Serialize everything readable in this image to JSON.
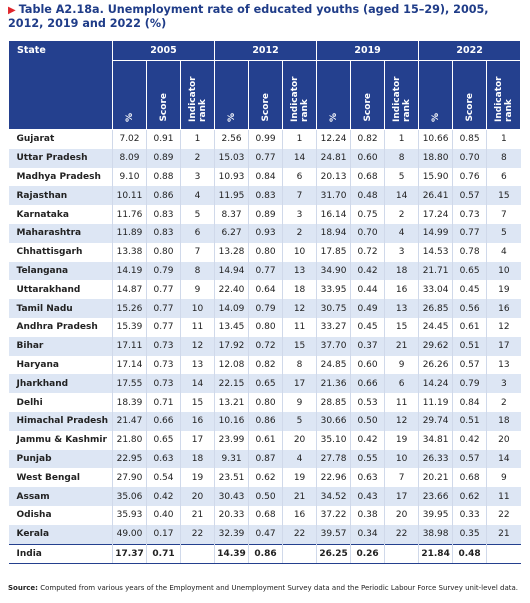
{
  "title": "Table A2.18a. Unemployment rate of educated youths (aged 15–29), 2005, 2012, 2019 and 2022 (%)",
  "source_label": "Source:",
  "source_text": "Computed from various years of the Employment and Unemployment Survey data and the Periodic Labour Force Survey unit-level data.",
  "table": {
    "state_header": "State",
    "years": [
      "2005",
      "2012",
      "2019",
      "2022"
    ],
    "subheaders": [
      "%",
      "Score",
      "Indicator rank"
    ],
    "rows": [
      [
        "Gujarat",
        "7.02",
        "0.91",
        "1",
        "2.56",
        "0.99",
        "1",
        "12.24",
        "0.82",
        "1",
        "10.66",
        "0.85",
        "1"
      ],
      [
        "Uttar Pradesh",
        "8.09",
        "0.89",
        "2",
        "15.03",
        "0.77",
        "14",
        "24.81",
        "0.60",
        "8",
        "18.80",
        "0.70",
        "8"
      ],
      [
        "Madhya Pradesh",
        "9.10",
        "0.88",
        "3",
        "10.93",
        "0.84",
        "6",
        "20.13",
        "0.68",
        "5",
        "15.90",
        "0.76",
        "6"
      ],
      [
        "Rajasthan",
        "10.11",
        "0.86",
        "4",
        "11.95",
        "0.83",
        "7",
        "31.70",
        "0.48",
        "14",
        "26.41",
        "0.57",
        "15"
      ],
      [
        "Karnataka",
        "11.76",
        "0.83",
        "5",
        "8.37",
        "0.89",
        "3",
        "16.14",
        "0.75",
        "2",
        "17.24",
        "0.73",
        "7"
      ],
      [
        "Maharashtra",
        "11.89",
        "0.83",
        "6",
        "6.27",
        "0.93",
        "2",
        "18.94",
        "0.70",
        "4",
        "14.99",
        "0.77",
        "5"
      ],
      [
        "Chhattisgarh",
        "13.38",
        "0.80",
        "7",
        "13.28",
        "0.80",
        "10",
        "17.85",
        "0.72",
        "3",
        "14.53",
        "0.78",
        "4"
      ],
      [
        "Telangana",
        "14.19",
        "0.79",
        "8",
        "14.94",
        "0.77",
        "13",
        "34.90",
        "0.42",
        "18",
        "21.71",
        "0.65",
        "10"
      ],
      [
        "Uttarakhand",
        "14.87",
        "0.77",
        "9",
        "22.40",
        "0.64",
        "18",
        "33.95",
        "0.44",
        "16",
        "33.04",
        "0.45",
        "19"
      ],
      [
        "Tamil Nadu",
        "15.26",
        "0.77",
        "10",
        "14.09",
        "0.79",
        "12",
        "30.75",
        "0.49",
        "13",
        "26.85",
        "0.56",
        "16"
      ],
      [
        "Andhra Pradesh",
        "15.39",
        "0.77",
        "11",
        "13.45",
        "0.80",
        "11",
        "33.27",
        "0.45",
        "15",
        "24.45",
        "0.61",
        "12"
      ],
      [
        "Bihar",
        "17.11",
        "0.73",
        "12",
        "17.92",
        "0.72",
        "15",
        "37.70",
        "0.37",
        "21",
        "29.62",
        "0.51",
        "17"
      ],
      [
        "Haryana",
        "17.14",
        "0.73",
        "13",
        "12.08",
        "0.82",
        "8",
        "24.85",
        "0.60",
        "9",
        "26.26",
        "0.57",
        "13"
      ],
      [
        "Jharkhand",
        "17.55",
        "0.73",
        "14",
        "22.15",
        "0.65",
        "17",
        "21.36",
        "0.66",
        "6",
        "14.24",
        "0.79",
        "3"
      ],
      [
        "Delhi",
        "18.39",
        "0.71",
        "15",
        "13.21",
        "0.80",
        "9",
        "28.85",
        "0.53",
        "11",
        "11.19",
        "0.84",
        "2"
      ],
      [
        "Himachal Pradesh",
        "21.47",
        "0.66",
        "16",
        "10.16",
        "0.86",
        "5",
        "30.66",
        "0.50",
        "12",
        "29.74",
        "0.51",
        "18"
      ],
      [
        "Jammu & Kashmir",
        "21.80",
        "0.65",
        "17",
        "23.99",
        "0.61",
        "20",
        "35.10",
        "0.42",
        "19",
        "34.81",
        "0.42",
        "20"
      ],
      [
        "Punjab",
        "22.95",
        "0.63",
        "18",
        "9.31",
        "0.87",
        "4",
        "27.78",
        "0.55",
        "10",
        "26.33",
        "0.57",
        "14"
      ],
      [
        "West Bengal",
        "27.90",
        "0.54",
        "19",
        "23.51",
        "0.62",
        "19",
        "22.96",
        "0.63",
        "7",
        "20.21",
        "0.68",
        "9"
      ],
      [
        "Assam",
        "35.06",
        "0.42",
        "20",
        "30.43",
        "0.50",
        "21",
        "34.52",
        "0.43",
        "17",
        "23.66",
        "0.62",
        "11"
      ],
      [
        "Odisha",
        "35.93",
        "0.40",
        "21",
        "20.33",
        "0.68",
        "16",
        "37.22",
        "0.38",
        "20",
        "39.95",
        "0.33",
        "22"
      ],
      [
        "Kerala",
        "49.00",
        "0.17",
        "22",
        "32.39",
        "0.47",
        "22",
        "39.57",
        "0.34",
        "22",
        "38.98",
        "0.35",
        "21"
      ]
    ],
    "total": [
      "India",
      "17.37",
      "0.71",
      "14.39",
      "0.86",
      "26.25",
      "0.26",
      "21.84",
      "0.48"
    ]
  }
}
